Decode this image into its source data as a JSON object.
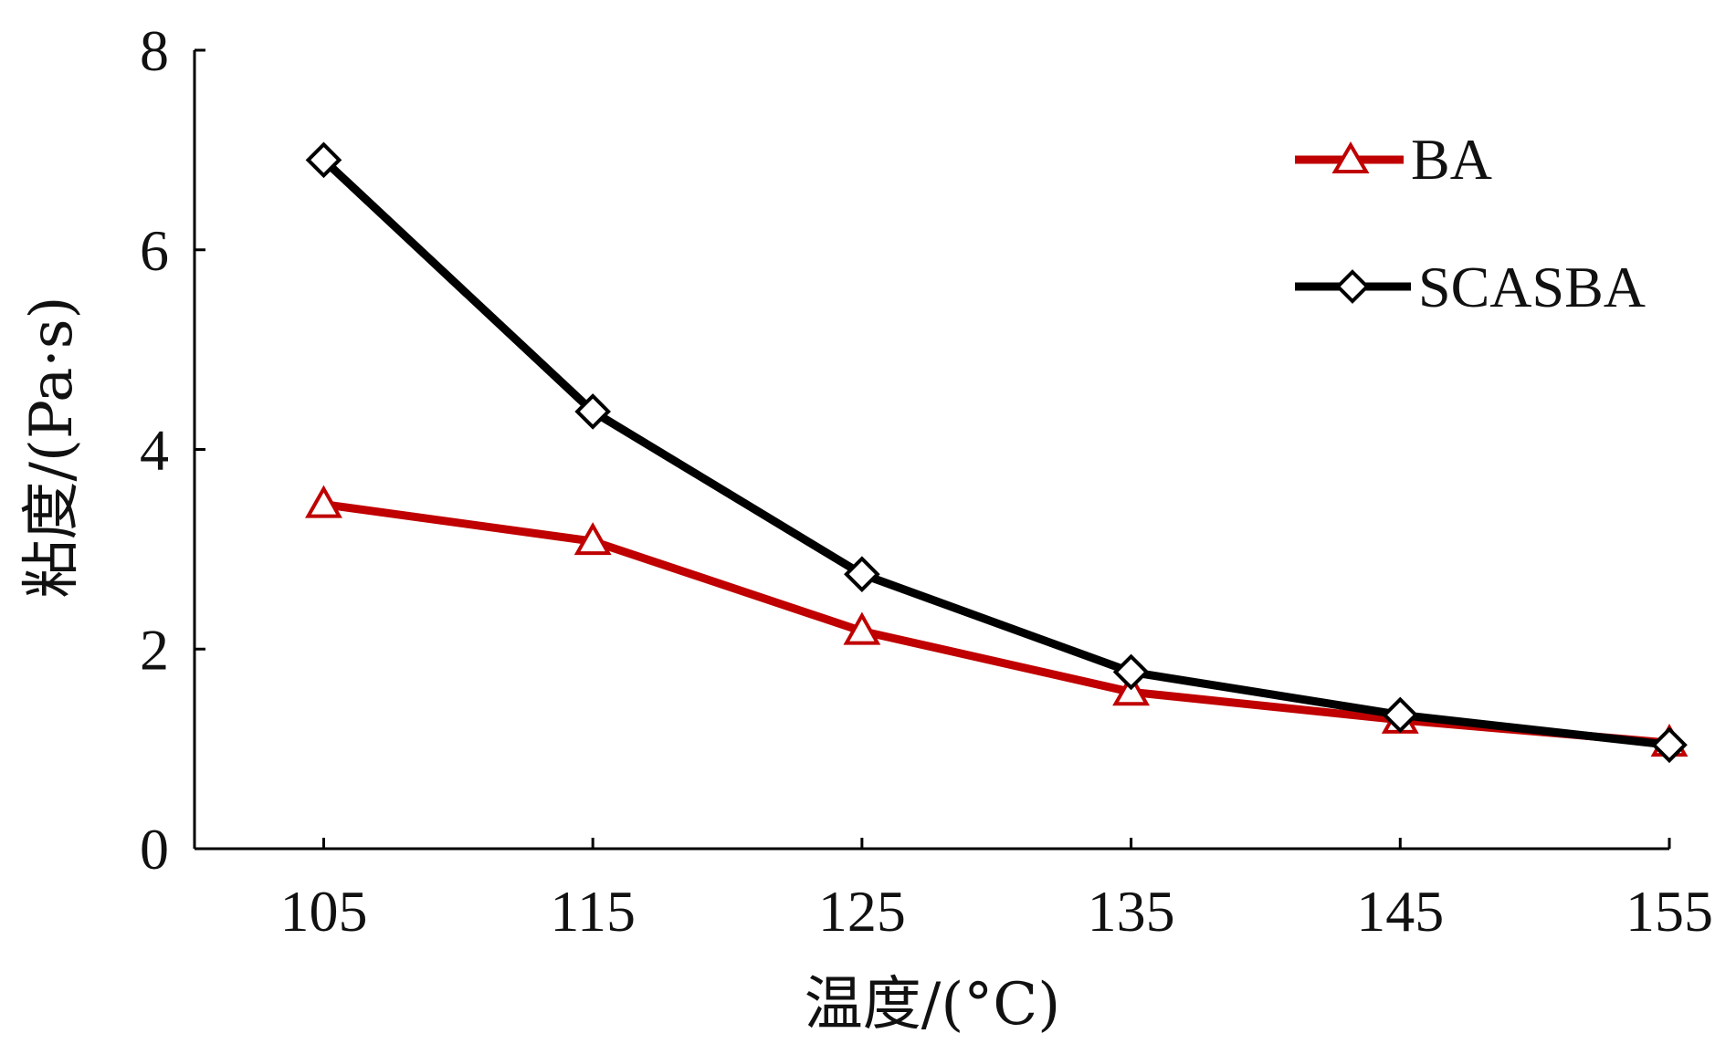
{
  "chart_data": {
    "type": "line",
    "xlabel": "温度/(°C)",
    "ylabel": "粘度/(Pa·s)",
    "x": [
      105,
      115,
      125,
      135,
      145,
      155
    ],
    "x_tick_labels": [
      "105",
      "115",
      "125",
      "135",
      "145",
      "155"
    ],
    "y_ticks": [
      0,
      2,
      4,
      6,
      8
    ],
    "y_tick_labels": [
      "0",
      "2",
      "4",
      "6",
      "8"
    ],
    "xlim": [
      100.2,
      155
    ],
    "ylim": [
      0,
      8
    ],
    "grid": false,
    "legend_position": "top-right",
    "series": [
      {
        "name": "BA",
        "marker": "triangle-icon",
        "color": "#c00000",
        "values": [
          3.45,
          3.08,
          2.18,
          1.57,
          1.29,
          1.06
        ]
      },
      {
        "name": "SCASBA",
        "marker": "diamond-icon",
        "color": "#000000",
        "values": [
          6.9,
          4.38,
          2.75,
          1.77,
          1.34,
          1.04
        ]
      }
    ]
  }
}
